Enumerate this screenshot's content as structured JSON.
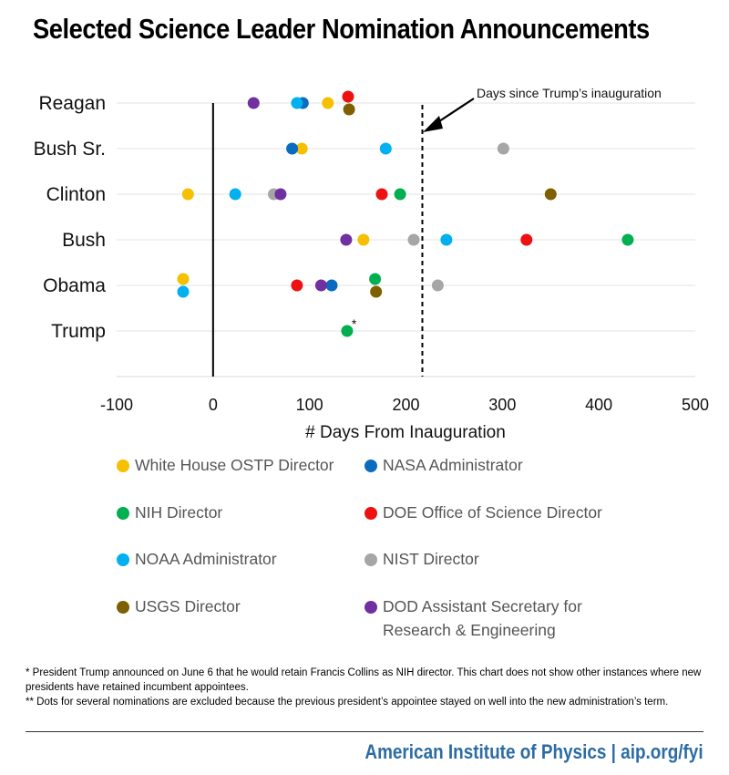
{
  "title": "Selected Science Leader Nomination Announcements",
  "colors": {
    "ostp": "#f5c000",
    "nasa": "#0b6cbf",
    "nih": "#00b050",
    "doe": "#ee1111",
    "noaa": "#00b0f0",
    "nist": "#a6a6a6",
    "usgs": "#7f6000",
    "dod": "#7030a0"
  },
  "chart_data": {
    "type": "scatter",
    "title": "Selected Science Leader Nomination Announcements",
    "xlabel": "# Days From Inauguration",
    "ylabel": "",
    "xlim": [
      -100,
      500
    ],
    "xticks": [
      -100,
      0,
      100,
      200,
      300,
      400,
      500
    ],
    "xtick_labels": [
      "-100",
      "0",
      "100",
      "200",
      "300",
      "400",
      "500"
    ],
    "categories": [
      "Reagan",
      "Bush Sr.",
      "Clinton",
      "Bush",
      "Obama",
      "Trump"
    ],
    "reference_line": {
      "x": 217,
      "label": "Days since Trump’s inauguration",
      "style": "dashed"
    },
    "zero_line": {
      "x": 0,
      "style": "solid"
    },
    "annotation": {
      "text": "*",
      "category": "Trump",
      "series": "NIH Director"
    },
    "series": [
      {
        "name": "White House OSTP Director",
        "color_key": "ostp",
        "points": [
          {
            "category": "Reagan",
            "x": 119
          },
          {
            "category": "Bush Sr.",
            "x": 92
          },
          {
            "category": "Clinton",
            "x": -26
          },
          {
            "category": "Bush",
            "x": 156
          },
          {
            "category": "Obama",
            "x": -31
          }
        ]
      },
      {
        "name": "NASA Administrator",
        "color_key": "nasa",
        "points": [
          {
            "category": "Reagan",
            "x": 93
          },
          {
            "category": "Bush Sr.",
            "x": 82
          },
          {
            "category": "Obama",
            "x": 123
          }
        ]
      },
      {
        "name": "NIH Director",
        "color_key": "nih",
        "points": [
          {
            "category": "Clinton",
            "x": 194
          },
          {
            "category": "Bush",
            "x": 430
          },
          {
            "category": "Obama",
            "x": 168
          },
          {
            "category": "Trump",
            "x": 139
          }
        ]
      },
      {
        "name": "DOE Office of Science Director",
        "color_key": "doe",
        "points": [
          {
            "category": "Reagan",
            "x": 140
          },
          {
            "category": "Clinton",
            "x": 175
          },
          {
            "category": "Bush",
            "x": 325
          },
          {
            "category": "Obama",
            "x": 87
          }
        ]
      },
      {
        "name": "NOAA Administrator",
        "color_key": "noaa",
        "points": [
          {
            "category": "Reagan",
            "x": 87
          },
          {
            "category": "Bush Sr.",
            "x": 179
          },
          {
            "category": "Clinton",
            "x": 23
          },
          {
            "category": "Bush",
            "x": 242
          },
          {
            "category": "Obama",
            "x": -31
          }
        ]
      },
      {
        "name": "NIST Director",
        "color_key": "nist",
        "points": [
          {
            "category": "Bush Sr.",
            "x": 301
          },
          {
            "category": "Clinton",
            "x": 63
          },
          {
            "category": "Bush",
            "x": 208
          },
          {
            "category": "Obama",
            "x": 233
          }
        ]
      },
      {
        "name": "USGS Director",
        "color_key": "usgs",
        "points": [
          {
            "category": "Reagan",
            "x": 141
          },
          {
            "category": "Clinton",
            "x": 350
          },
          {
            "category": "Obama",
            "x": 169
          }
        ]
      },
      {
        "name": "DOD Assistant Secretary for Research & Engineering",
        "color_key": "dod",
        "points": [
          {
            "category": "Reagan",
            "x": 42
          },
          {
            "category": "Clinton",
            "x": 70
          },
          {
            "category": "Bush",
            "x": 138
          },
          {
            "category": "Obama",
            "x": 112
          }
        ]
      }
    ]
  },
  "legend": [
    {
      "line1": "White House OSTP Director",
      "line2": "",
      "color_key": "ostp"
    },
    {
      "line1": "NASA Administrator",
      "line2": "",
      "color_key": "nasa"
    },
    {
      "line1": "NIH Director",
      "line2": "",
      "color_key": "nih"
    },
    {
      "line1": "DOE Office of Science Director",
      "line2": "",
      "color_key": "doe"
    },
    {
      "line1": "NOAA Administrator",
      "line2": "",
      "color_key": "noaa"
    },
    {
      "line1": "NIST Director",
      "line2": "",
      "color_key": "nist"
    },
    {
      "line1": "USGS Director",
      "line2": "",
      "color_key": "usgs"
    },
    {
      "line1": "DOD Assistant Secretary for",
      "line2": "Research & Engineering",
      "color_key": "dod"
    }
  ],
  "footnotes": {
    "note1": "* President Trump announced on June 6 that he would retain Francis Collins as NIH director. This chart does not show other instances where new presidents have retained incumbent appointees.",
    "note2": "** Dots for several nominations are excluded because the previous president’s appointee stayed on well into the new administration’s term."
  },
  "brand": "American Institute of Physics | aip.org/fyi"
}
